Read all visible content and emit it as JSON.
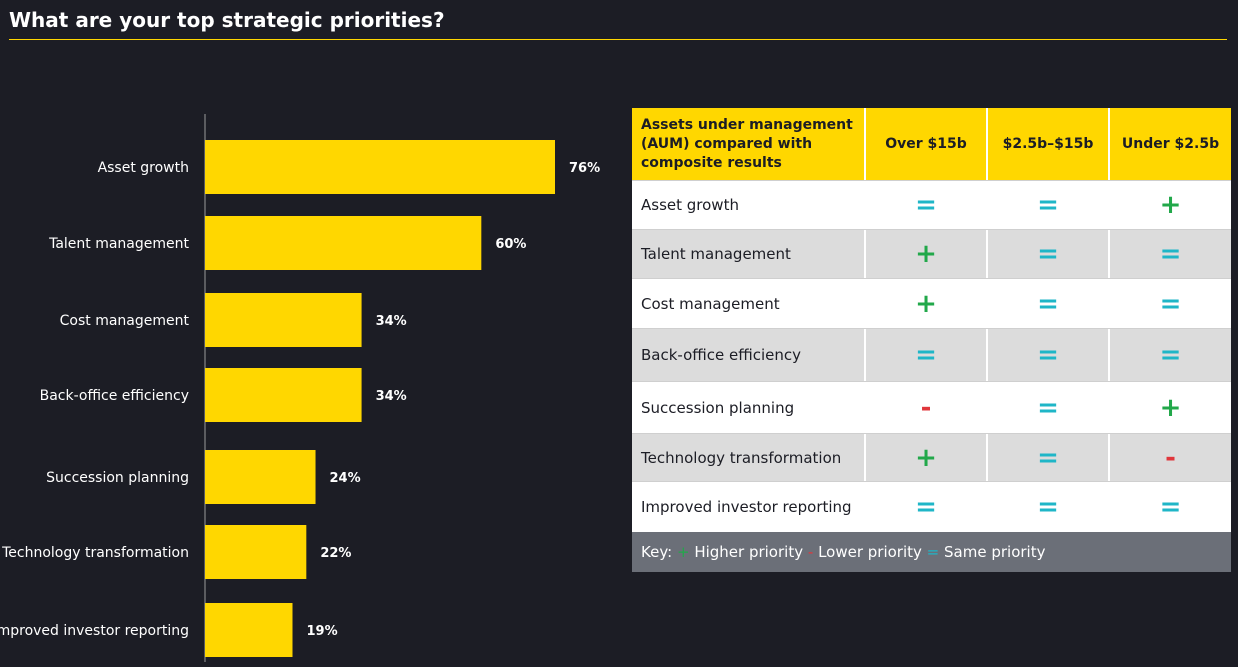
{
  "title": "What are your top strategic priorities?",
  "colors": {
    "background": "#1c1d25",
    "accent": "#ffd700",
    "higher": "#22a84a",
    "lower": "#e0363b",
    "same": "#1fb6c7"
  },
  "chart_data": {
    "type": "bar",
    "orientation": "horizontal",
    "categories": [
      "Asset growth",
      "Talent management",
      "Cost management",
      "Back-office efficiency",
      "Succession planning",
      "Technology transformation",
      "Improved investor reporting"
    ],
    "values": [
      76,
      60,
      34,
      34,
      24,
      22,
      19
    ],
    "value_labels": [
      "76%",
      "60%",
      "34%",
      "34%",
      "24%",
      "22%",
      "19%"
    ],
    "xlim": [
      0,
      100
    ],
    "grid": false
  },
  "table": {
    "headers": [
      "Assets under management (AUM) compared with composite results",
      "Over $15b",
      "$2.5b–$15b",
      "Under $2.5b"
    ],
    "rows": [
      {
        "label": "Asset growth",
        "marks": [
          "=",
          "=",
          "+"
        ]
      },
      {
        "label": "Talent management",
        "marks": [
          "+",
          "=",
          "="
        ]
      },
      {
        "label": "Cost management",
        "marks": [
          "+",
          "=",
          "="
        ]
      },
      {
        "label": "Back-office efficiency",
        "marks": [
          "=",
          "=",
          "="
        ]
      },
      {
        "label": "Succession planning",
        "marks": [
          "-",
          "=",
          "+"
        ]
      },
      {
        "label": "Technology transformation",
        "marks": [
          "+",
          "=",
          "-"
        ]
      },
      {
        "label": "Improved investor reporting",
        "marks": [
          "=",
          "=",
          "="
        ]
      }
    ],
    "key": {
      "prefix": "Key:",
      "higher": "Higher priority",
      "lower": "Lower priority",
      "same": "Same priority"
    }
  }
}
